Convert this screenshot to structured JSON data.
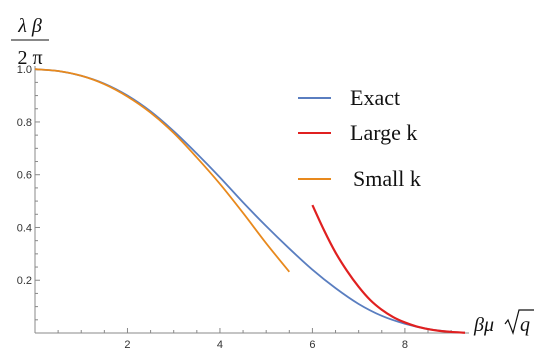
{
  "chart_data": {
    "type": "line",
    "ylabel": {
      "numerator": "λ β",
      "denominator": "2 π"
    },
    "xlabel": {
      "prefix": "βμ",
      "radicand": "q"
    },
    "xlim": [
      0,
      9.3
    ],
    "ylim": [
      0,
      1.05
    ],
    "x_ticks": [
      2,
      4,
      6,
      8
    ],
    "y_ticks": [
      0.2,
      0.4,
      0.6,
      0.8,
      1.0
    ],
    "y_tick_labels": [
      "0.2",
      "0.4",
      "0.6",
      "0.8",
      "1.0"
    ],
    "legend": {
      "position": "top-right"
    },
    "series": [
      {
        "name": "Exact",
        "color": "#5a7ec0",
        "x": [
          0,
          0.5,
          1,
          1.5,
          2,
          2.5,
          3,
          3.5,
          4,
          4.5,
          5,
          5.5,
          6,
          6.5,
          7,
          7.5,
          8,
          8.5,
          9,
          9.3
        ],
        "y": [
          1.0,
          0.993,
          0.975,
          0.945,
          0.9,
          0.84,
          0.765,
          0.68,
          0.59,
          0.495,
          0.405,
          0.32,
          0.24,
          0.17,
          0.11,
          0.065,
          0.035,
          0.015,
          0.004,
          0.001
        ]
      },
      {
        "name": "Large k",
        "color": "#e02020",
        "x": [
          6,
          6.25,
          6.5,
          6.75,
          7,
          7.25,
          7.5,
          7.75,
          8,
          8.25,
          8.5,
          8.75,
          9,
          9.3
        ],
        "y": [
          0.485,
          0.39,
          0.305,
          0.235,
          0.175,
          0.125,
          0.088,
          0.06,
          0.04,
          0.025,
          0.015,
          0.008,
          0.004,
          0.001
        ]
      },
      {
        "name": "Small k",
        "color": "#e8891d",
        "x": [
          0,
          0.5,
          1,
          1.5,
          2,
          2.5,
          3,
          3.5,
          4,
          4.5,
          5,
          5.5
        ],
        "y": [
          1.0,
          0.993,
          0.975,
          0.943,
          0.896,
          0.835,
          0.758,
          0.665,
          0.565,
          0.455,
          0.34,
          0.232
        ]
      }
    ]
  }
}
